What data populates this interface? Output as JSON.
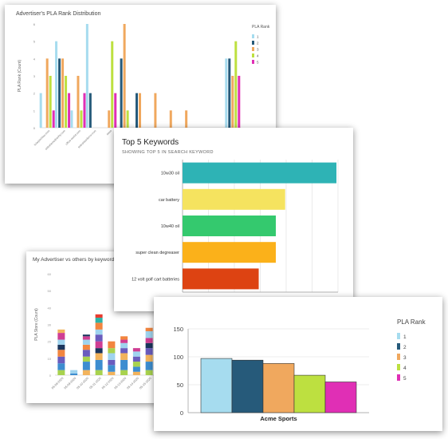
{
  "chart_data": [
    {
      "id": "c1",
      "type": "bar",
      "title": "Advertiser's PLA Rank Distribution",
      "ylabel": "PLA Rank (Count)",
      "ylim": [
        0,
        6
      ],
      "ytick_labels": [
        "0",
        "1",
        "2",
        "3",
        "4",
        "5",
        "6"
      ],
      "legend": {
        "title": "PLA Rank",
        "placement": "right"
      },
      "categories": [
        "c1",
        "c2",
        "c3",
        "c4",
        "c5",
        "c6",
        "c7",
        "c8",
        "c9",
        "c10",
        "c11",
        "c12",
        "c13"
      ],
      "tick_labels": [
        "lolarpachiau.com",
        "elitrahemelbanhy.com",
        "office-world.com",
        "seleuhlesdecor.com",
        "aaaa",
        "bbbb",
        "",
        "",
        "",
        "",
        "",
        "",
        ""
      ],
      "series": [
        {
          "name": "1",
          "color": "#a6dcef",
          "values": [
            2,
            5,
            1,
            6,
            0,
            0,
            0,
            0,
            0,
            0,
            0,
            0,
            4
          ]
        },
        {
          "name": "2",
          "color": "#265a7a",
          "values": [
            0,
            4,
            0,
            2,
            0,
            4,
            2,
            0,
            0,
            0,
            0,
            0,
            4
          ]
        },
        {
          "name": "3",
          "color": "#f0a85e",
          "values": [
            4,
            4,
            3,
            0,
            1,
            6,
            2,
            2,
            1,
            1,
            0,
            0,
            3
          ]
        },
        {
          "name": "4",
          "color": "#bde040",
          "values": [
            3,
            3,
            1,
            0,
            5,
            1,
            0,
            0,
            0,
            0,
            0,
            0,
            5
          ]
        },
        {
          "name": "5",
          "color": "#e02fb5",
          "values": [
            1,
            2,
            2,
            0,
            2,
            0,
            0,
            0,
            0,
            0,
            0,
            0,
            3
          ]
        }
      ]
    },
    {
      "id": "c2",
      "type": "bar",
      "orientation": "horizontal",
      "title": "Top 5 Keywords",
      "subtitle": "SHOWING TOP 5 IN SEARCH KEYWORD",
      "categories": [
        "10w30 oil",
        "car battery",
        "10w40 oil",
        "super clean degreaser",
        "12 volt golf cart batteries"
      ],
      "values": [
        297,
        198,
        180,
        180,
        147
      ],
      "colors": [
        "#2eb3b5",
        "#f5e35f",
        "#34c96e",
        "#fbb11a",
        "#dd4312"
      ],
      "xlim": [
        0,
        300
      ],
      "xticks": [
        0,
        50,
        100,
        150,
        200,
        250,
        300
      ],
      "grid": true
    },
    {
      "id": "c3",
      "type": "bar",
      "stacked": true,
      "title": "My Advertiser vs others by keyword",
      "ylabel": "PLA Store (Count)",
      "ylim": [
        0,
        60
      ],
      "yticks": [
        0,
        10,
        20,
        30,
        40,
        50,
        60
      ],
      "categories": [
        "05-08-2020",
        "05-09-2020",
        "05-10-2020",
        "05-11-2020",
        "05-12-2020",
        "05-13-2020",
        "05-14-2020",
        "05-15-2020"
      ],
      "tick_labels": [
        "05-08-2020",
        "05-09-2020",
        "05-10-2020",
        "05-11-2020",
        "05-12-2020",
        "05-13-2020",
        "05-14-2020",
        "05-15-2020"
      ],
      "bars": [
        [
          {
            "v": 3,
            "c": "#a8d24e"
          },
          {
            "v": 4,
            "c": "#3d8dd0"
          },
          {
            "v": 4,
            "c": "#6a5cbe"
          },
          {
            "v": 4,
            "c": "#f2853f"
          },
          {
            "v": 3,
            "c": "#1b365d"
          },
          {
            "v": 3,
            "c": "#9fd3ee"
          },
          {
            "v": 4,
            "c": "#cf3e93"
          },
          {
            "v": 2,
            "c": "#f2b35c"
          }
        ],
        [
          {
            "v": 1,
            "c": "#3d8dd0"
          },
          {
            "v": 2,
            "c": "#9fd3ee"
          }
        ],
        [
          {
            "v": 3,
            "c": "#f2b35c"
          },
          {
            "v": 5,
            "c": "#3d8dd0"
          },
          {
            "v": 3,
            "c": "#a8d24e"
          },
          {
            "v": 4,
            "c": "#6a5cbe"
          },
          {
            "v": 3,
            "c": "#f2853f"
          },
          {
            "v": 3,
            "c": "#9fd3ee"
          },
          {
            "v": 2,
            "c": "#cf3e93"
          },
          {
            "v": 1,
            "c": "#1b365d"
          }
        ],
        [
          {
            "v": 3,
            "c": "#a8d24e"
          },
          {
            "v": 6,
            "c": "#3d8dd0"
          },
          {
            "v": 4,
            "c": "#f2b35c"
          },
          {
            "v": 3,
            "c": "#1b365d"
          },
          {
            "v": 4,
            "c": "#cf3e93"
          },
          {
            "v": 4,
            "c": "#6a5cbe"
          },
          {
            "v": 3,
            "c": "#9fd3ee"
          },
          {
            "v": 4,
            "c": "#f2853f"
          },
          {
            "v": 3,
            "c": "#2db3a6"
          },
          {
            "v": 2,
            "c": "#e83b2f"
          }
        ],
        [
          {
            "v": 2,
            "c": "#f2b35c"
          },
          {
            "v": 4,
            "c": "#3d8dd0"
          },
          {
            "v": 3,
            "c": "#6a5cbe"
          },
          {
            "v": 4,
            "c": "#9fd3ee"
          },
          {
            "v": 3,
            "c": "#a8d24e"
          },
          {
            "v": 4,
            "c": "#f2853f"
          }
        ],
        [
          {
            "v": 3,
            "c": "#a8d24e"
          },
          {
            "v": 6,
            "c": "#3d8dd0"
          },
          {
            "v": 4,
            "c": "#f2b35c"
          },
          {
            "v": 3,
            "c": "#6a5cbe"
          },
          {
            "v": 3,
            "c": "#9fd3ee"
          },
          {
            "v": 2,
            "c": "#cf3e93"
          },
          {
            "v": 2,
            "c": "#f2853f"
          }
        ],
        [
          {
            "v": 2,
            "c": "#f2b35c"
          },
          {
            "v": 3,
            "c": "#3d8dd0"
          },
          {
            "v": 3,
            "c": "#a8d24e"
          },
          {
            "v": 3,
            "c": "#6a5cbe"
          },
          {
            "v": 3,
            "c": "#9fd3ee"
          },
          {
            "v": 2,
            "c": "#cf3e93"
          }
        ],
        [
          {
            "v": 3,
            "c": "#a8d24e"
          },
          {
            "v": 5,
            "c": "#3d8dd0"
          },
          {
            "v": 4,
            "c": "#f2b35c"
          },
          {
            "v": 4,
            "c": "#6a5cbe"
          },
          {
            "v": 3,
            "c": "#1b365d"
          },
          {
            "v": 3,
            "c": "#cf3e93"
          },
          {
            "v": 4,
            "c": "#9fd3ee"
          },
          {
            "v": 2,
            "c": "#f2853f"
          }
        ]
      ]
    },
    {
      "id": "c4",
      "type": "bar",
      "legend": {
        "title": "PLA Rank",
        "placement": "right"
      },
      "categories": [
        "Acme Sports"
      ],
      "ylim": [
        0,
        150
      ],
      "yticks": [
        0,
        50,
        100,
        150
      ],
      "grid": true,
      "series": [
        {
          "name": "1",
          "color": "#a6dcef",
          "values": [
            97
          ]
        },
        {
          "name": "2",
          "color": "#265a7a",
          "values": [
            94
          ]
        },
        {
          "name": "3",
          "color": "#f0a85e",
          "values": [
            88
          ]
        },
        {
          "name": "4",
          "color": "#bde040",
          "values": [
            67
          ]
        },
        {
          "name": "5",
          "color": "#e02fb5",
          "values": [
            55
          ]
        }
      ]
    }
  ]
}
